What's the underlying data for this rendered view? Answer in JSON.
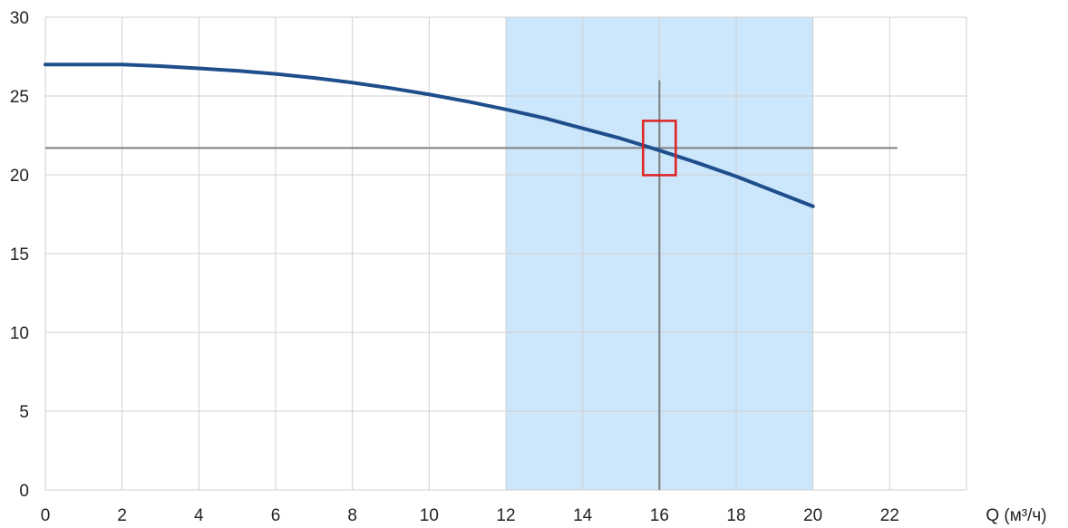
{
  "chart_data": {
    "type": "line",
    "title": "",
    "xlabel": "Q (м³/ч)",
    "ylabel": "",
    "xlim": [
      0,
      24
    ],
    "ylim": [
      0,
      30
    ],
    "x_ticks": [
      0,
      2,
      4,
      6,
      8,
      10,
      12,
      14,
      16,
      18,
      20,
      22
    ],
    "y_ticks": [
      0,
      5,
      10,
      15,
      20,
      25,
      30
    ],
    "grid": true,
    "series": [
      {
        "color": "#1f4e8c",
        "x": [
          0,
          1,
          2,
          3,
          4,
          5,
          6,
          7,
          8,
          9,
          10,
          11,
          12,
          13,
          14,
          15,
          16,
          17,
          18,
          19,
          20
        ],
        "y": [
          27.0,
          27.0,
          27.0,
          26.9,
          26.75,
          26.6,
          26.4,
          26.15,
          25.85,
          25.5,
          25.1,
          24.65,
          24.15,
          23.6,
          22.95,
          22.3,
          21.55,
          20.75,
          19.9,
          18.95,
          18.0
        ]
      }
    ],
    "working_range": {
      "x_from": 12,
      "x_to": 20,
      "color": "#cce6fb"
    },
    "duty_point": {
      "x": 16,
      "y": 21.7,
      "vertical_line_y_to": 26,
      "horizontal_line_x_to": 22.2,
      "line_color": "#7f7f7f",
      "marker_color": "#e02020"
    }
  }
}
